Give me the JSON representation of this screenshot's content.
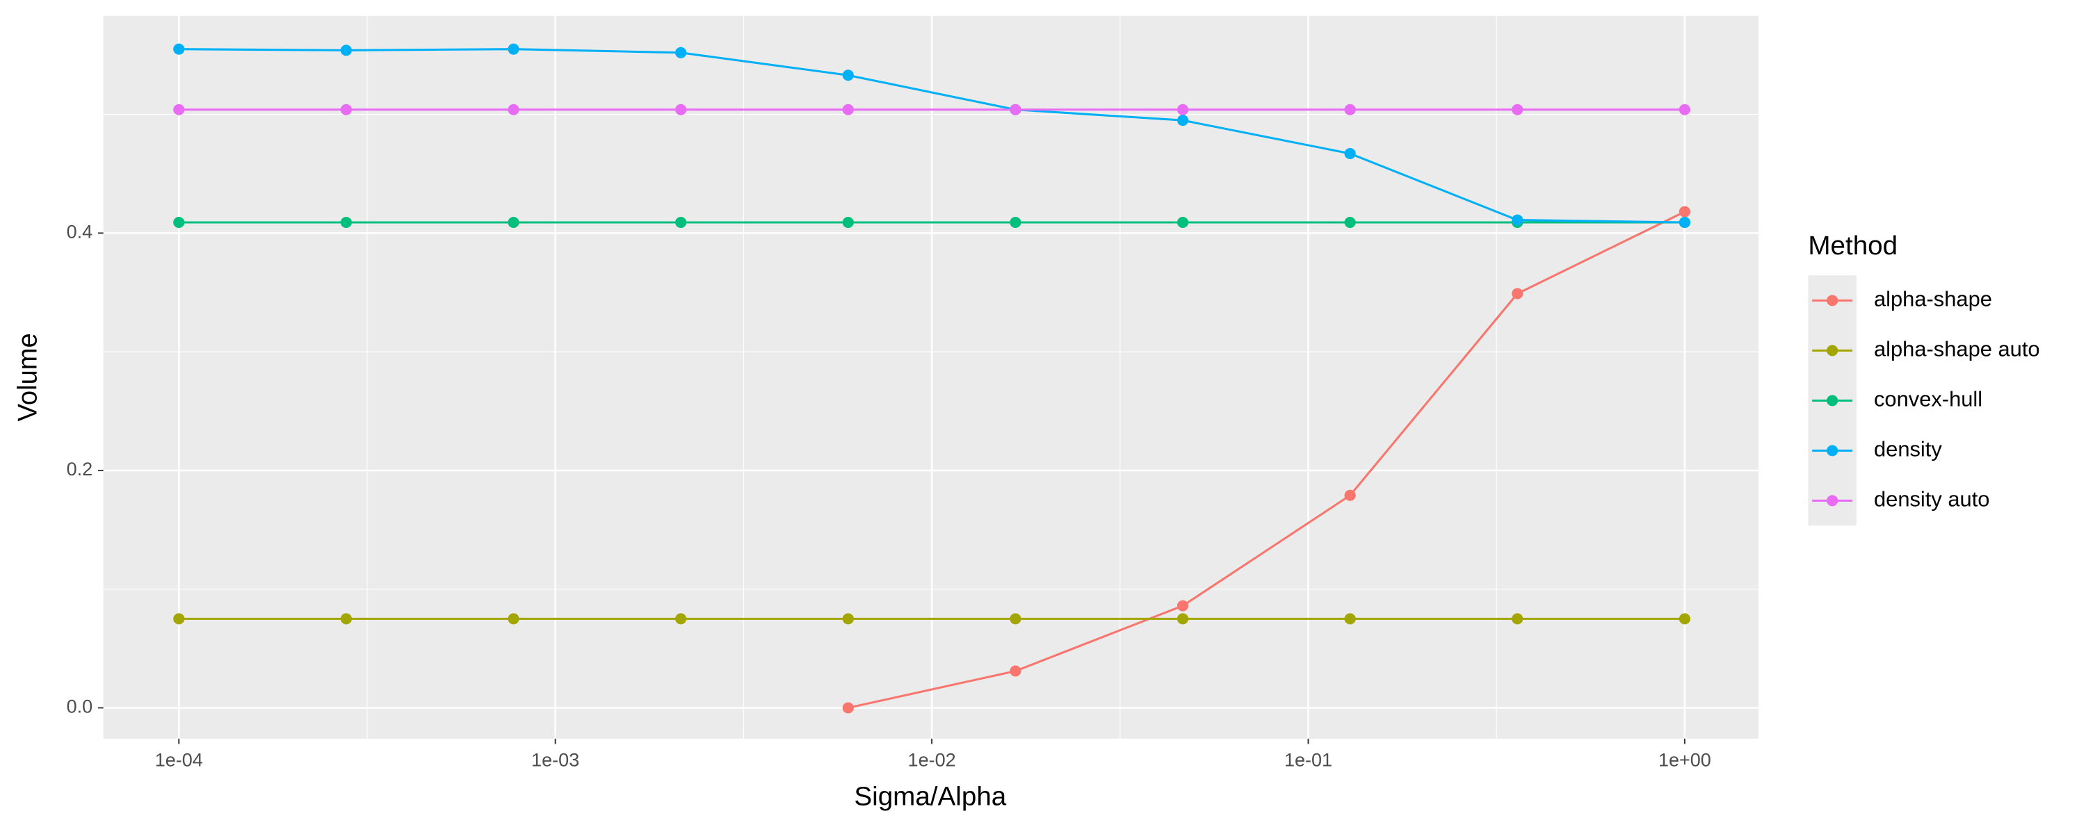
{
  "chart_data": {
    "type": "line",
    "x_label": "Sigma/Alpha",
    "y_label": "Volume",
    "legend_title": "Method",
    "x_log": true,
    "grid": true,
    "legend_position": "right",
    "x": [
      0.0001,
      0.00027826,
      0.00077426,
      0.0021544,
      0.0059948,
      0.016681,
      0.046416,
      0.12915,
      0.35938,
      1
    ],
    "series": [
      {
        "name": "alpha-shape",
        "color": "#F8766D",
        "values": [
          null,
          null,
          null,
          null,
          0,
          0.031,
          0.086,
          0.179,
          0.349,
          0.418
        ]
      },
      {
        "name": "alpha-shape auto",
        "color": "#A3A500",
        "values": [
          0.075,
          0.075,
          0.075,
          0.075,
          0.075,
          0.075,
          0.075,
          0.075,
          0.075,
          0.075
        ]
      },
      {
        "name": "convex-hull",
        "color": "#00BF7D",
        "values": [
          0.409,
          0.409,
          0.409,
          0.409,
          0.409,
          0.409,
          0.409,
          0.409,
          0.409,
          0.409
        ]
      },
      {
        "name": "density",
        "color": "#00B0F6",
        "values": [
          0.555,
          0.554,
          0.555,
          0.552,
          0.533,
          0.504,
          0.495,
          0.467,
          0.411,
          0.409
        ]
      },
      {
        "name": "density auto",
        "color": "#E76BF3",
        "values": [
          0.504,
          0.504,
          0.504,
          0.504,
          0.504,
          0.504,
          0.504,
          0.504,
          0.504,
          0.504
        ]
      }
    ],
    "xlim": [
      6.3e-05,
      1.57
    ],
    "ylim": [
      -0.026,
      0.583
    ],
    "xticks": [
      {
        "value": 0.0001,
        "label": "1e-04"
      },
      {
        "value": 0.001,
        "label": "1e-03"
      },
      {
        "value": 0.01,
        "label": "1e-02"
      },
      {
        "value": 0.1,
        "label": "1e-01"
      },
      {
        "value": 1,
        "label": "1e+00"
      }
    ],
    "yticks": [
      {
        "value": 0,
        "label": "0.0"
      },
      {
        "value": 0.2,
        "label": "0.2"
      },
      {
        "value": 0.4,
        "label": "0.4"
      }
    ]
  }
}
